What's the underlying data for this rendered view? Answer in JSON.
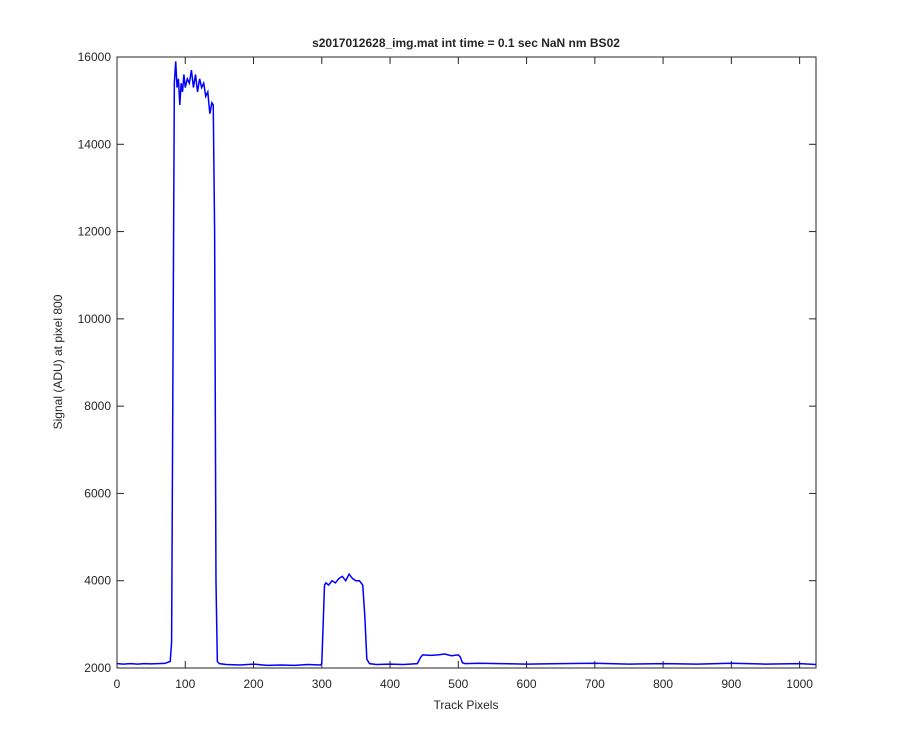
{
  "chart_data": {
    "type": "line",
    "title": "s2017012628_img.mat int time = 0.1 sec  NaN nm BS02",
    "x_label": "Track Pixels",
    "y_label": "Signal (ADU) at pixel 800",
    "xlim": [
      0,
      1024
    ],
    "ylim": [
      2000,
      16000
    ],
    "xticks": [
      0,
      100,
      200,
      300,
      400,
      500,
      600,
      700,
      800,
      900,
      1000
    ],
    "yticks": [
      2000,
      4000,
      6000,
      8000,
      10000,
      12000,
      14000,
      16000
    ],
    "x": [
      0,
      10,
      20,
      30,
      40,
      50,
      60,
      70,
      78,
      80,
      82,
      84,
      86,
      88,
      90,
      92,
      94,
      96,
      98,
      100,
      103,
      106,
      109,
      112,
      115,
      118,
      121,
      124,
      127,
      130,
      133,
      136,
      139,
      141,
      143,
      145,
      147,
      150,
      160,
      180,
      200,
      220,
      240,
      260,
      280,
      298,
      300,
      302,
      304,
      306,
      310,
      315,
      320,
      325,
      330,
      335,
      340,
      345,
      350,
      355,
      360,
      363,
      366,
      370,
      380,
      400,
      420,
      440,
      445,
      448,
      460,
      470,
      480,
      490,
      500,
      503,
      506,
      510,
      530,
      560,
      600,
      650,
      700,
      750,
      800,
      850,
      900,
      950,
      1000,
      1024
    ],
    "series": [
      {
        "color": "#0000ff",
        "values": [
          2100,
          2090,
          2100,
          2090,
          2100,
          2095,
          2100,
          2105,
          2150,
          2600,
          9000,
          15400,
          15900,
          15300,
          15500,
          14900,
          15400,
          15200,
          15600,
          15300,
          15500,
          15400,
          15700,
          15300,
          15600,
          15200,
          15500,
          15300,
          15400,
          15100,
          15200,
          14700,
          14950,
          14900,
          12000,
          4000,
          2150,
          2100,
          2080,
          2070,
          2090,
          2060,
          2070,
          2060,
          2080,
          2070,
          2100,
          3000,
          3900,
          3950,
          3900,
          4000,
          3950,
          4050,
          4100,
          4000,
          4150,
          4050,
          4000,
          4000,
          3900,
          3200,
          2200,
          2100,
          2080,
          2090,
          2080,
          2100,
          2250,
          2300,
          2290,
          2300,
          2320,
          2280,
          2300,
          2250,
          2120,
          2100,
          2110,
          2100,
          2090,
          2100,
          2110,
          2090,
          2100,
          2090,
          2110,
          2090,
          2100,
          2080
        ]
      }
    ]
  }
}
